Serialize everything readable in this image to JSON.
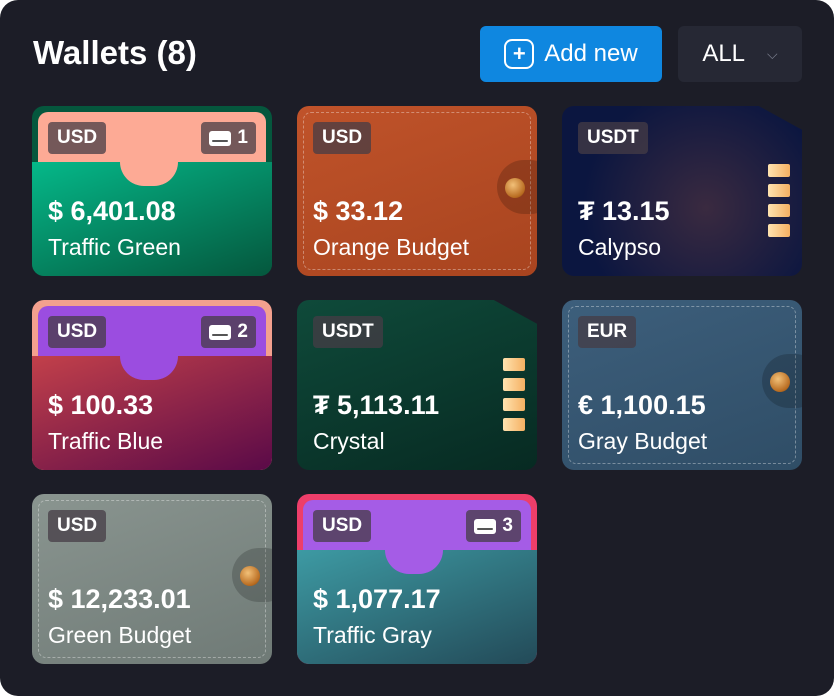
{
  "header": {
    "title": "Wallets (8)",
    "add_label": "Add new",
    "filter_value": "ALL"
  },
  "wallets": [
    {
      "type": "traffic",
      "currency": "USD",
      "cards": "1",
      "amount": "$ 6,401.08",
      "name": "Traffic Green",
      "top": "#fdaa95",
      "body": "linear-gradient(160deg,#05b889,#05573d)",
      "frame": "#05573d"
    },
    {
      "type": "leather",
      "currency": "USD",
      "amount": "$ 33.12",
      "name": "Orange Budget",
      "body": "linear-gradient(160deg,#c0532a,#a8441f)"
    },
    {
      "type": "crypto",
      "currency": "USDT",
      "amount": "₮ 13.15",
      "name": "Calypso",
      "body": "radial-gradient(circle at 60% 60%,#3a2a40,#0b1640 70%)"
    },
    {
      "type": "traffic",
      "currency": "USD",
      "cards": "2",
      "amount": "$ 100.33",
      "name": "Traffic Blue",
      "top": "#9b4de0",
      "body": "linear-gradient(160deg,#c2404a,#5a0a48)",
      "frame": "#f3a08e"
    },
    {
      "type": "crypto",
      "currency": "USDT",
      "amount": "₮ 5,113.11",
      "name": "Crystal",
      "body": "linear-gradient(160deg,#0f4a3a,#072a22)"
    },
    {
      "type": "leather",
      "currency": "EUR",
      "amount": "€ 1,100.15",
      "name": "Gray Budget",
      "body": "linear-gradient(160deg,#3d5f7c,#2f4d66)"
    },
    {
      "type": "leather",
      "currency": "USD",
      "amount": "$ 12,233.01",
      "name": "Green Budget",
      "body": "linear-gradient(160deg,#8a9590,#6f7a76)"
    },
    {
      "type": "traffic",
      "currency": "USD",
      "cards": "3",
      "amount": "$ 1,077.17",
      "name": "Traffic Gray",
      "top": "#a55ce6",
      "body": "linear-gradient(160deg,#3d9aa3,#234a58)",
      "frame": "#ee3e6a"
    }
  ]
}
